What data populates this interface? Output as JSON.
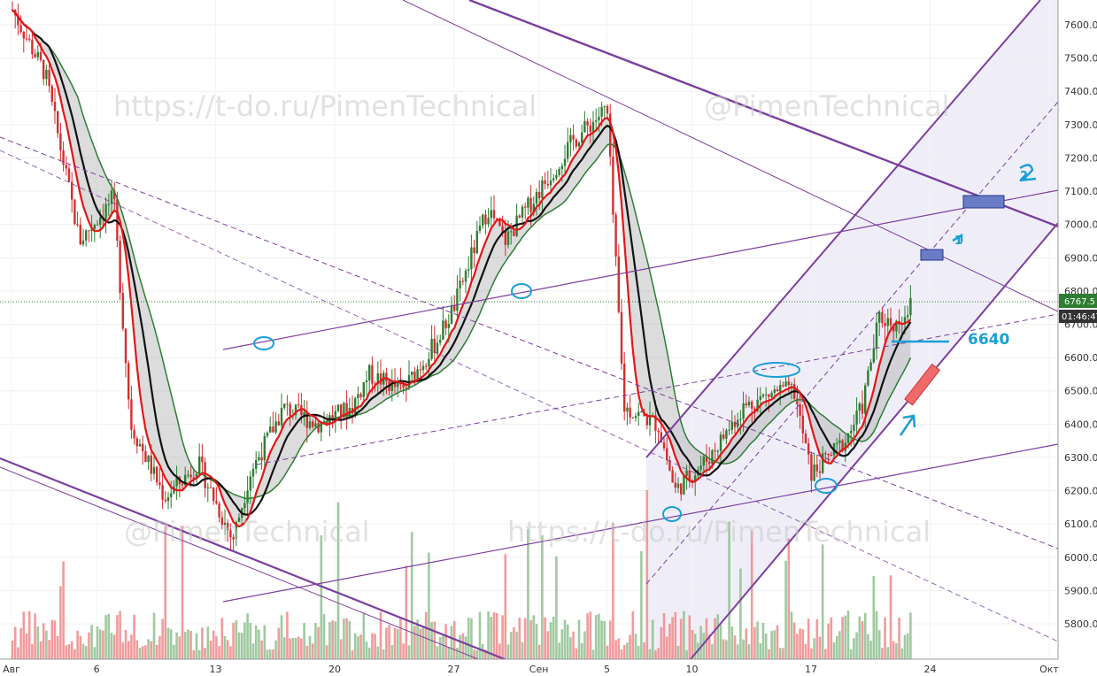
{
  "chart_data": {
    "type": "candlestick",
    "title": "",
    "ylim": [
      5700,
      7700
    ],
    "y_ticks": [
      "5800.0",
      "5900.0",
      "6000.0",
      "6100.0",
      "6200.0",
      "6300.0",
      "6400.0",
      "6500.0",
      "6600.0",
      "6700.0",
      "6800.0",
      "6900.0",
      "7000.0",
      "7100.0",
      "7200.0",
      "7300.0",
      "7400.0",
      "7500.0",
      "7600.0"
    ],
    "y_tick_values": [
      5800,
      5900,
      6000,
      6100,
      6200,
      6300,
      6400,
      6500,
      6600,
      6700,
      6800,
      6900,
      7000,
      7100,
      7200,
      7300,
      7400,
      7500,
      7600
    ],
    "x_ticks": [
      "Авг",
      "6",
      "13",
      "20",
      "27",
      "Сен",
      "5",
      "10",
      "17",
      "24",
      "Окт"
    ],
    "x_tick_dates": [
      "2018-08-01",
      "2018-08-06",
      "2018-08-13",
      "2018-08-20",
      "2018-08-27",
      "2018-09-01",
      "2018-09-05",
      "2018-09-10",
      "2018-09-17",
      "2018-09-24",
      "2018-10-01"
    ],
    "current_price": "6767.5",
    "countdown": "01:46:47",
    "annotations": [
      "6640",
      "1",
      "2"
    ],
    "watermarks": [
      "https://t-do.ru/PimenTechnical",
      "@PimenTechnical",
      "@PimenTechnical",
      "https://t-do.ru/PimenTechnical"
    ],
    "price_path": [
      [
        "2018-08-01",
        7650
      ],
      [
        "2018-08-03",
        7450
      ],
      [
        "2018-08-05",
        6950
      ],
      [
        "2018-08-07",
        7080
      ],
      [
        "2018-08-08",
        6400
      ],
      [
        "2018-08-10",
        6180
      ],
      [
        "2018-08-12",
        6280
      ],
      [
        "2018-08-14",
        6050
      ],
      [
        "2018-08-15",
        6250
      ],
      [
        "2018-08-17",
        6450
      ],
      [
        "2018-08-19",
        6400
      ],
      [
        "2018-08-21",
        6450
      ],
      [
        "2018-08-22",
        6550
      ],
      [
        "2018-08-24",
        6500
      ],
      [
        "2018-08-26",
        6650
      ],
      [
        "2018-08-27",
        6750
      ],
      [
        "2018-08-29",
        7050
      ],
      [
        "2018-08-30",
        6950
      ],
      [
        "2018-09-01",
        7100
      ],
      [
        "2018-09-03",
        7250
      ],
      [
        "2018-09-05",
        7350
      ],
      [
        "2018-09-06",
        6450
      ],
      [
        "2018-09-08",
        6400
      ],
      [
        "2018-09-09",
        6200
      ],
      [
        "2018-09-11",
        6300
      ],
      [
        "2018-09-13",
        6450
      ],
      [
        "2018-09-15",
        6500
      ],
      [
        "2018-09-16",
        6500
      ],
      [
        "2018-09-17",
        6250
      ],
      [
        "2018-09-18",
        6300
      ],
      [
        "2018-09-19",
        6350
      ],
      [
        "2018-09-20",
        6450
      ],
      [
        "2018-09-21",
        6720
      ],
      [
        "2018-09-22",
        6700
      ],
      [
        "2018-09-23",
        6767.5
      ]
    ]
  },
  "colors": {
    "up_candle": "#2e7d32",
    "down_candle": "#d32f2f",
    "ma_fast": "#e01818",
    "ma_black": "#111111",
    "channel_purple": "#7b3fa0",
    "annotation_blue": "#1a9fd6",
    "price_tag_green": "#2e7d32",
    "price_tag_dark": "#333333"
  }
}
